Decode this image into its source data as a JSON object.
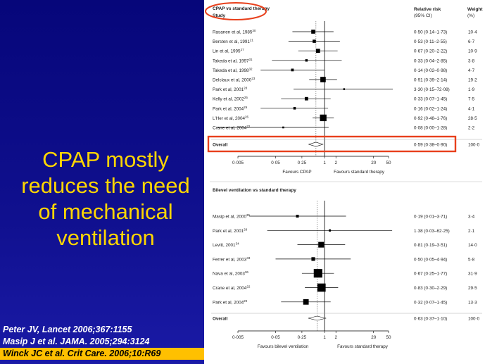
{
  "slide": {
    "title_lines": [
      "CPAP mostly",
      "reduces the need",
      "of mechanical",
      "ventilation"
    ],
    "references": [
      "Peter JV, Lancet 2006;367:1155",
      "Masip J et al. JAMA. 2005;294:3124",
      "Winck JC  et al. Crit Care. 2006;10:R69"
    ],
    "colors": {
      "background": "#0a0a7a",
      "title": "#ffd600",
      "highlight_ref": "#ffc000",
      "annotation": "#e8401c",
      "marker": "#000000"
    }
  },
  "chart_data": [
    {
      "type": "forest",
      "title": "CPAP vs standard therapy",
      "col_study": "Study",
      "col_rr": "Relative risk",
      "col_rr_sub": "(95% CI)",
      "col_weight": "Weight",
      "col_weight_sub": "(%)",
      "x_scale": "log",
      "xlim": [
        0.005,
        50
      ],
      "ticks": [
        "0·005",
        "0·05",
        "0·25",
        "1",
        "2",
        "20",
        "50"
      ],
      "tick_values": [
        0.005,
        0.05,
        0.25,
        1,
        2,
        20,
        50
      ],
      "favours_left": "Favours CPAP",
      "favours_right": "Favours standard therapy",
      "studies": [
        {
          "name": "Rasanen et al, 1985",
          "ref": "30",
          "rr": 0.5,
          "lo": 0.14,
          "hi": 1.73,
          "rr_text": "0·50 (0·14–1·73)",
          "weight": "10·4"
        },
        {
          "name": "Bersten et al, 1991",
          "ref": "21",
          "rr": 0.53,
          "lo": 0.11,
          "hi": 2.55,
          "rr_text": "0·53 (0·11–2·55)",
          "weight": "6·7"
        },
        {
          "name": "Lin et al, 1995",
          "ref": "27",
          "rr": 0.67,
          "lo": 0.2,
          "hi": 2.22,
          "rr_text": "0·67 (0·20–2·22)",
          "weight": "10·9"
        },
        {
          "name": "Takeda et al, 1997",
          "ref": "31",
          "rr": 0.33,
          "lo": 0.04,
          "hi": 2.85,
          "rr_text": "0·33 (0·04–2·85)",
          "weight": "3·8"
        },
        {
          "name": "Takeda et al, 1998",
          "ref": "32",
          "rr": 0.14,
          "lo": 0.02,
          "hi": 0.98,
          "rr_text": "0·14 (0·02–0·98)",
          "weight": "4·7"
        },
        {
          "name": "Delclaux et al, 2000",
          "ref": "23",
          "rr": 0.91,
          "lo": 0.39,
          "hi": 2.14,
          "rr_text": "0·91 (0·39–2·14)",
          "weight": "19·2"
        },
        {
          "name": "Park et al, 2001",
          "ref": "28",
          "rr": 3.3,
          "lo": 0.15,
          "hi": 72.08,
          "rr_text": "3·30 (0·15–72·08)",
          "weight": "1·9"
        },
        {
          "name": "Kelly et al, 2002",
          "ref": "25",
          "rr": 0.33,
          "lo": 0.07,
          "hi": 1.45,
          "rr_text": "0·33 (0·07–1·45)",
          "weight": "7·5"
        },
        {
          "name": "Park et al, 2004",
          "ref": "29",
          "rr": 0.16,
          "lo": 0.02,
          "hi": 1.24,
          "rr_text": "0·16 (0·02–1·24)",
          "weight": "4·1"
        },
        {
          "name": "L'Her et al, 2004",
          "ref": "26",
          "rr": 0.92,
          "lo": 0.48,
          "hi": 1.76,
          "rr_text": "0·92 (0·48–1·76)",
          "weight": "28·5"
        },
        {
          "name": "Crane et al, 2004",
          "ref": "22",
          "rr": 0.08,
          "lo": 0.0,
          "hi": 1.28,
          "rr_text": "0·08 (0·00–1·28)",
          "weight": "2·2"
        }
      ],
      "overall": {
        "name": "Overall",
        "rr": 0.59,
        "lo": 0.38,
        "hi": 0.9,
        "rr_text": "0·59 (0·38–0·90)",
        "weight": "100·0"
      }
    },
    {
      "type": "forest",
      "title": "Bilevel ventilation vs standard therapy",
      "x_scale": "log",
      "xlim": [
        0.005,
        50
      ],
      "ticks": [
        "0·005",
        "0·05",
        "0·25",
        "1",
        "2",
        "20",
        "50"
      ],
      "tick_values": [
        0.005,
        0.05,
        0.25,
        1,
        2,
        20,
        50
      ],
      "favours_left": "Favours bilevel ventilation",
      "favours_right": "Favours standard therapy",
      "studies": [
        {
          "name": "Masip et al, 2000",
          "ref": "35",
          "rr": 0.19,
          "lo": 0.01,
          "hi": 3.71,
          "rr_text": "0·19 (0·01–3·71)",
          "weight": "3·4"
        },
        {
          "name": "Park et al, 2001",
          "ref": "28",
          "rr": 1.38,
          "lo": 0.03,
          "hi": 62.25,
          "rr_text": "1·38 (0·03–62·25)",
          "weight": "2·1"
        },
        {
          "name": "Levitt, 2001",
          "ref": "34",
          "rr": 0.81,
          "lo": 0.19,
          "hi": 3.51,
          "rr_text": "0·81 (0·19–3·51)",
          "weight": "14·0"
        },
        {
          "name": "Ferrer et al, 2003",
          "ref": "33",
          "rr": 0.5,
          "lo": 0.05,
          "hi": 4.94,
          "rr_text": "0·50 (0·05–4·94)",
          "weight": "5·8"
        },
        {
          "name": "Nava et al, 2003",
          "ref": "36",
          "rr": 0.67,
          "lo": 0.25,
          "hi": 1.77,
          "rr_text": "0·67 (0·25–1·77)",
          "weight": "31·9"
        },
        {
          "name": "Crane et al, 2004",
          "ref": "22",
          "rr": 0.83,
          "lo": 0.3,
          "hi": 2.29,
          "rr_text": "0·83 (0·30–2·29)",
          "weight": "29·5"
        },
        {
          "name": "Park et al, 2004",
          "ref": "29",
          "rr": 0.32,
          "lo": 0.07,
          "hi": 1.45,
          "rr_text": "0·32 (0·07–1·45)",
          "weight": "13·3"
        }
      ],
      "overall": {
        "name": "Overall",
        "rr": 0.63,
        "lo": 0.37,
        "hi": 1.1,
        "rr_text": "0·63 (0·37–1·10)",
        "weight": "100·0"
      }
    }
  ]
}
